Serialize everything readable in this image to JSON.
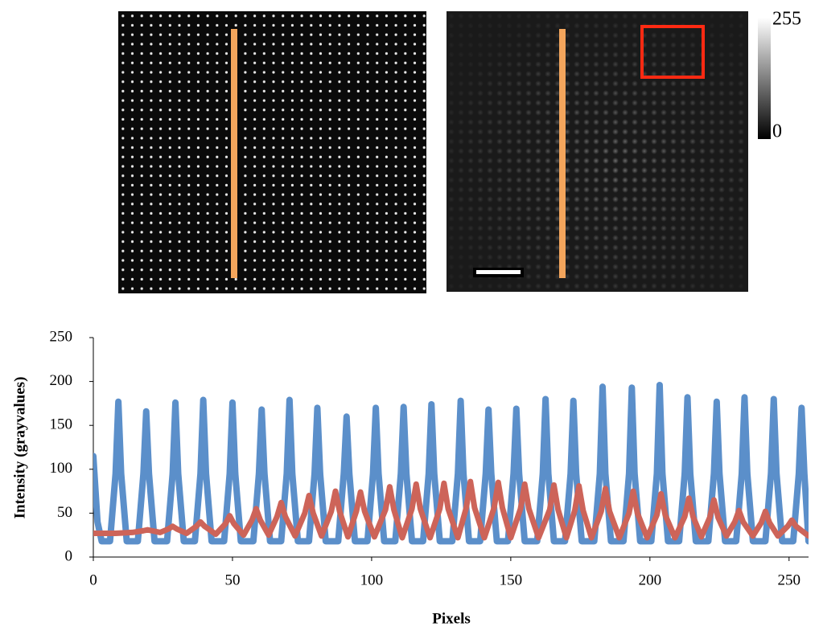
{
  "chart_data": {
    "type": "line",
    "x_label": "Pixels",
    "y_label": "Intensity (grayvalues)",
    "xlim": [
      0,
      257
    ],
    "ylim": [
      0,
      250
    ],
    "xticks": [
      0,
      50,
      100,
      150,
      200,
      250
    ],
    "yticks": [
      0,
      50,
      100,
      150,
      200,
      250
    ],
    "series": [
      {
        "color": "#5b8fca",
        "x": [
          0,
          1.5,
          3,
          6,
          8,
          9,
          10,
          12,
          16,
          18,
          19,
          20,
          22,
          26.5,
          28.5,
          29.5,
          30.5,
          32.5,
          36.5,
          38.5,
          39.5,
          40.5,
          42.5,
          47,
          49,
          50,
          51,
          53,
          57.5,
          59.5,
          60.5,
          61.5,
          63.5,
          67.5,
          69.5,
          70.5,
          71.5,
          73.5,
          77.5,
          79.5,
          80.5,
          81.5,
          83.5,
          88,
          90,
          91,
          92,
          94,
          98.5,
          100.5,
          101.5,
          102.5,
          104.5,
          108.5,
          110.5,
          111.5,
          112.5,
          114.5,
          118.5,
          120.5,
          121.5,
          122.5,
          124.5,
          129,
          131,
          132,
          133,
          135,
          139,
          141,
          142,
          143,
          145,
          149,
          151,
          152,
          153,
          155,
          159.5,
          161.5,
          162.5,
          163.5,
          165.5,
          169.5,
          171.5,
          172.5,
          173.5,
          175.5,
          180,
          182,
          183,
          184,
          186,
          190.5,
          192.5,
          193.5,
          194.5,
          196.5,
          200.5,
          202.5,
          203.5,
          204.5,
          206.5,
          210.5,
          212.5,
          213.5,
          214.5,
          216.5,
          221,
          223,
          224,
          225,
          227,
          231,
          233,
          234,
          235,
          237,
          241.5,
          243.5,
          244.5,
          245.5,
          247.5,
          251.5,
          253.5,
          254.5,
          255.5,
          257
        ],
        "values": [
          115,
          40,
          18,
          18,
          95,
          177,
          95,
          18,
          18,
          95,
          166,
          95,
          18,
          18,
          95,
          176,
          95,
          18,
          18,
          95,
          179,
          95,
          18,
          18,
          95,
          176,
          95,
          18,
          18,
          95,
          168,
          95,
          18,
          18,
          95,
          179,
          95,
          18,
          18,
          95,
          170,
          95,
          18,
          18,
          95,
          160,
          95,
          18,
          18,
          95,
          170,
          95,
          18,
          18,
          95,
          171,
          95,
          18,
          18,
          95,
          174,
          95,
          18,
          18,
          95,
          178,
          95,
          18,
          18,
          95,
          168,
          95,
          18,
          18,
          95,
          169,
          95,
          18,
          18,
          95,
          180,
          95,
          18,
          18,
          95,
          178,
          95,
          18,
          18,
          95,
          194,
          95,
          18,
          18,
          95,
          193,
          95,
          18,
          18,
          95,
          196,
          95,
          18,
          18,
          95,
          182,
          95,
          18,
          18,
          95,
          177,
          95,
          18,
          18,
          95,
          182,
          95,
          18,
          18,
          95,
          180,
          95,
          18,
          18,
          95,
          170,
          95,
          18
        ]
      },
      {
        "color": "#cd6459",
        "x": [
          0,
          8,
          14,
          18,
          19.5,
          21,
          24,
          27,
          28.5,
          30,
          33.5,
          37,
          38.5,
          40,
          44,
          47.5,
          49,
          50.5,
          54,
          57,
          58.5,
          60,
          63,
          66,
          67.5,
          69,
          72.5,
          76,
          77.5,
          79,
          82,
          85.5,
          87,
          88.5,
          91.5,
          94.5,
          96,
          97.5,
          101,
          105,
          106.5,
          108,
          111,
          114.5,
          116,
          117.5,
          121,
          124.5,
          126,
          127.5,
          131,
          134,
          135.5,
          137,
          140.5,
          144,
          145.5,
          147,
          150,
          153.5,
          155,
          156.5,
          160,
          164,
          165.5,
          167,
          170,
          173,
          174.5,
          176,
          179,
          182.5,
          184,
          185.5,
          189,
          192.5,
          194,
          195.5,
          199,
          202.5,
          204,
          205.5,
          209,
          212.5,
          214,
          215.5,
          218.5,
          221.5,
          223,
          224.5,
          227.5,
          230.5,
          232,
          233.5,
          237,
          240,
          241.5,
          243,
          246,
          249.5,
          251,
          252.5,
          257
        ],
        "values": [
          27,
          27,
          28,
          30,
          31,
          30,
          28,
          32,
          35,
          32,
          27,
          35,
          40,
          35,
          26,
          38,
          47,
          38,
          25,
          42,
          55,
          42,
          25,
          46,
          62,
          46,
          24,
          50,
          70,
          50,
          24,
          52,
          75,
          52,
          23,
          52,
          74,
          52,
          23,
          54,
          80,
          54,
          22,
          55,
          83,
          55,
          22,
          55,
          84,
          55,
          22,
          56,
          86,
          56,
          22,
          56,
          85,
          56,
          22,
          55,
          83,
          55,
          22,
          54,
          82,
          54,
          22,
          53,
          81,
          53,
          22,
          52,
          78,
          52,
          22,
          50,
          75,
          50,
          22,
          48,
          72,
          48,
          22,
          46,
          67,
          46,
          23,
          45,
          65,
          45,
          24,
          40,
          53,
          40,
          24,
          39,
          52,
          39,
          24,
          35,
          42,
          35,
          24
        ]
      }
    ]
  },
  "colorbar": {
    "ticks": [
      255,
      0
    ]
  }
}
